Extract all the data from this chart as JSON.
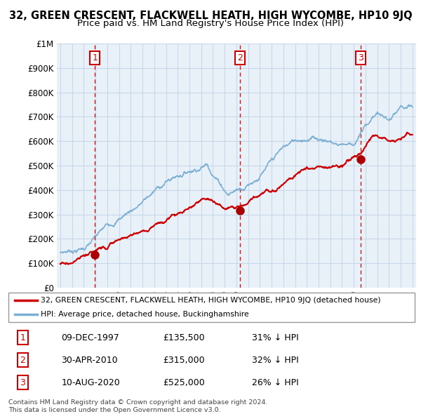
{
  "title": "32, GREEN CRESCENT, FLACKWELL HEATH, HIGH WYCOMBE, HP10 9JQ",
  "subtitle": "Price paid vs. HM Land Registry's House Price Index (HPI)",
  "title_fontsize": 10.5,
  "subtitle_fontsize": 9.5,
  "ylabel_ticks": [
    "£0",
    "£100K",
    "£200K",
    "£300K",
    "£400K",
    "£500K",
    "£600K",
    "£700K",
    "£800K",
    "£900K",
    "£1M"
  ],
  "ytick_values": [
    0,
    100000,
    200000,
    300000,
    400000,
    500000,
    600000,
    700000,
    800000,
    900000,
    1000000
  ],
  "ylim": [
    0,
    1000000
  ],
  "xlim_start": 1994.7,
  "xlim_end": 2025.3,
  "hpi_color": "#7bafd4",
  "price_color": "#cc0000",
  "sale_marker_color": "#aa0000",
  "dashed_line_color": "#cc0000",
  "plot_bg_color": "#e8f0f8",
  "sale_points": [
    {
      "year": 1997.94,
      "price": 135500,
      "label": "1"
    },
    {
      "year": 2010.33,
      "price": 315000,
      "label": "2"
    },
    {
      "year": 2020.61,
      "price": 525000,
      "label": "3"
    }
  ],
  "legend_entries": [
    "32, GREEN CRESCENT, FLACKWELL HEATH, HIGH WYCOMBE, HP10 9JQ (detached house)",
    "HPI: Average price, detached house, Buckinghamshire"
  ],
  "table_rows": [
    {
      "num": "1",
      "date": "09-DEC-1997",
      "price": "£135,500",
      "pct": "31% ↓ HPI"
    },
    {
      "num": "2",
      "date": "30-APR-2010",
      "price": "£315,000",
      "pct": "32% ↓ HPI"
    },
    {
      "num": "3",
      "date": "10-AUG-2020",
      "price": "£525,000",
      "pct": "26% ↓ HPI"
    }
  ],
  "footnote": "Contains HM Land Registry data © Crown copyright and database right 2024.\nThis data is licensed under the Open Government Licence v3.0.",
  "background_color": "#ffffff",
  "grid_color": "#c8d8e8"
}
